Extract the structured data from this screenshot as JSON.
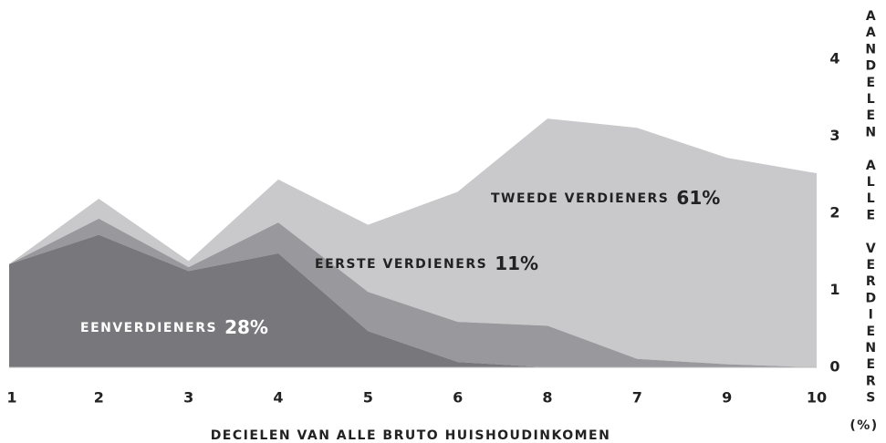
{
  "chart_data": {
    "type": "stacked_area",
    "x_label": "DECIELEN VAN ALLE BRUTO HUISHOUDINKOMEN",
    "y_label": "AANDELEN ALLE VERDIENERS",
    "y_unit": "(%)",
    "categories": [
      "1",
      "2",
      "3",
      "4",
      "5",
      "6",
      "8",
      "7",
      "9",
      "10"
    ],
    "series": [
      {
        "name": "EENVERDIENERS",
        "share": "28%",
        "color": "#78777c",
        "text_color": "#ffffff",
        "values": [
          1.34,
          1.72,
          1.25,
          1.48,
          0.47,
          0.07,
          0,
          0,
          0,
          0
        ]
      },
      {
        "name": "EERSTE VERDIENERS",
        "share": "11%",
        "color": "#99989c",
        "text_color": "#222222",
        "values": [
          0,
          0.21,
          0.05,
          0.4,
          0.51,
          0.52,
          0.54,
          0.11,
          0.04,
          0
        ]
      },
      {
        "name": "TWEEDE VERDIENERS",
        "share": "61%",
        "color": "#c9c9cb",
        "text_color": "#222222",
        "values": [
          0,
          0.26,
          0.08,
          0.56,
          0.87,
          1.69,
          2.69,
          3.0,
          2.68,
          2.52
        ]
      }
    ],
    "ylim": [
      0,
      4
    ],
    "yticks": [
      0,
      1,
      2,
      3,
      4
    ],
    "y_axis_side": "right"
  }
}
